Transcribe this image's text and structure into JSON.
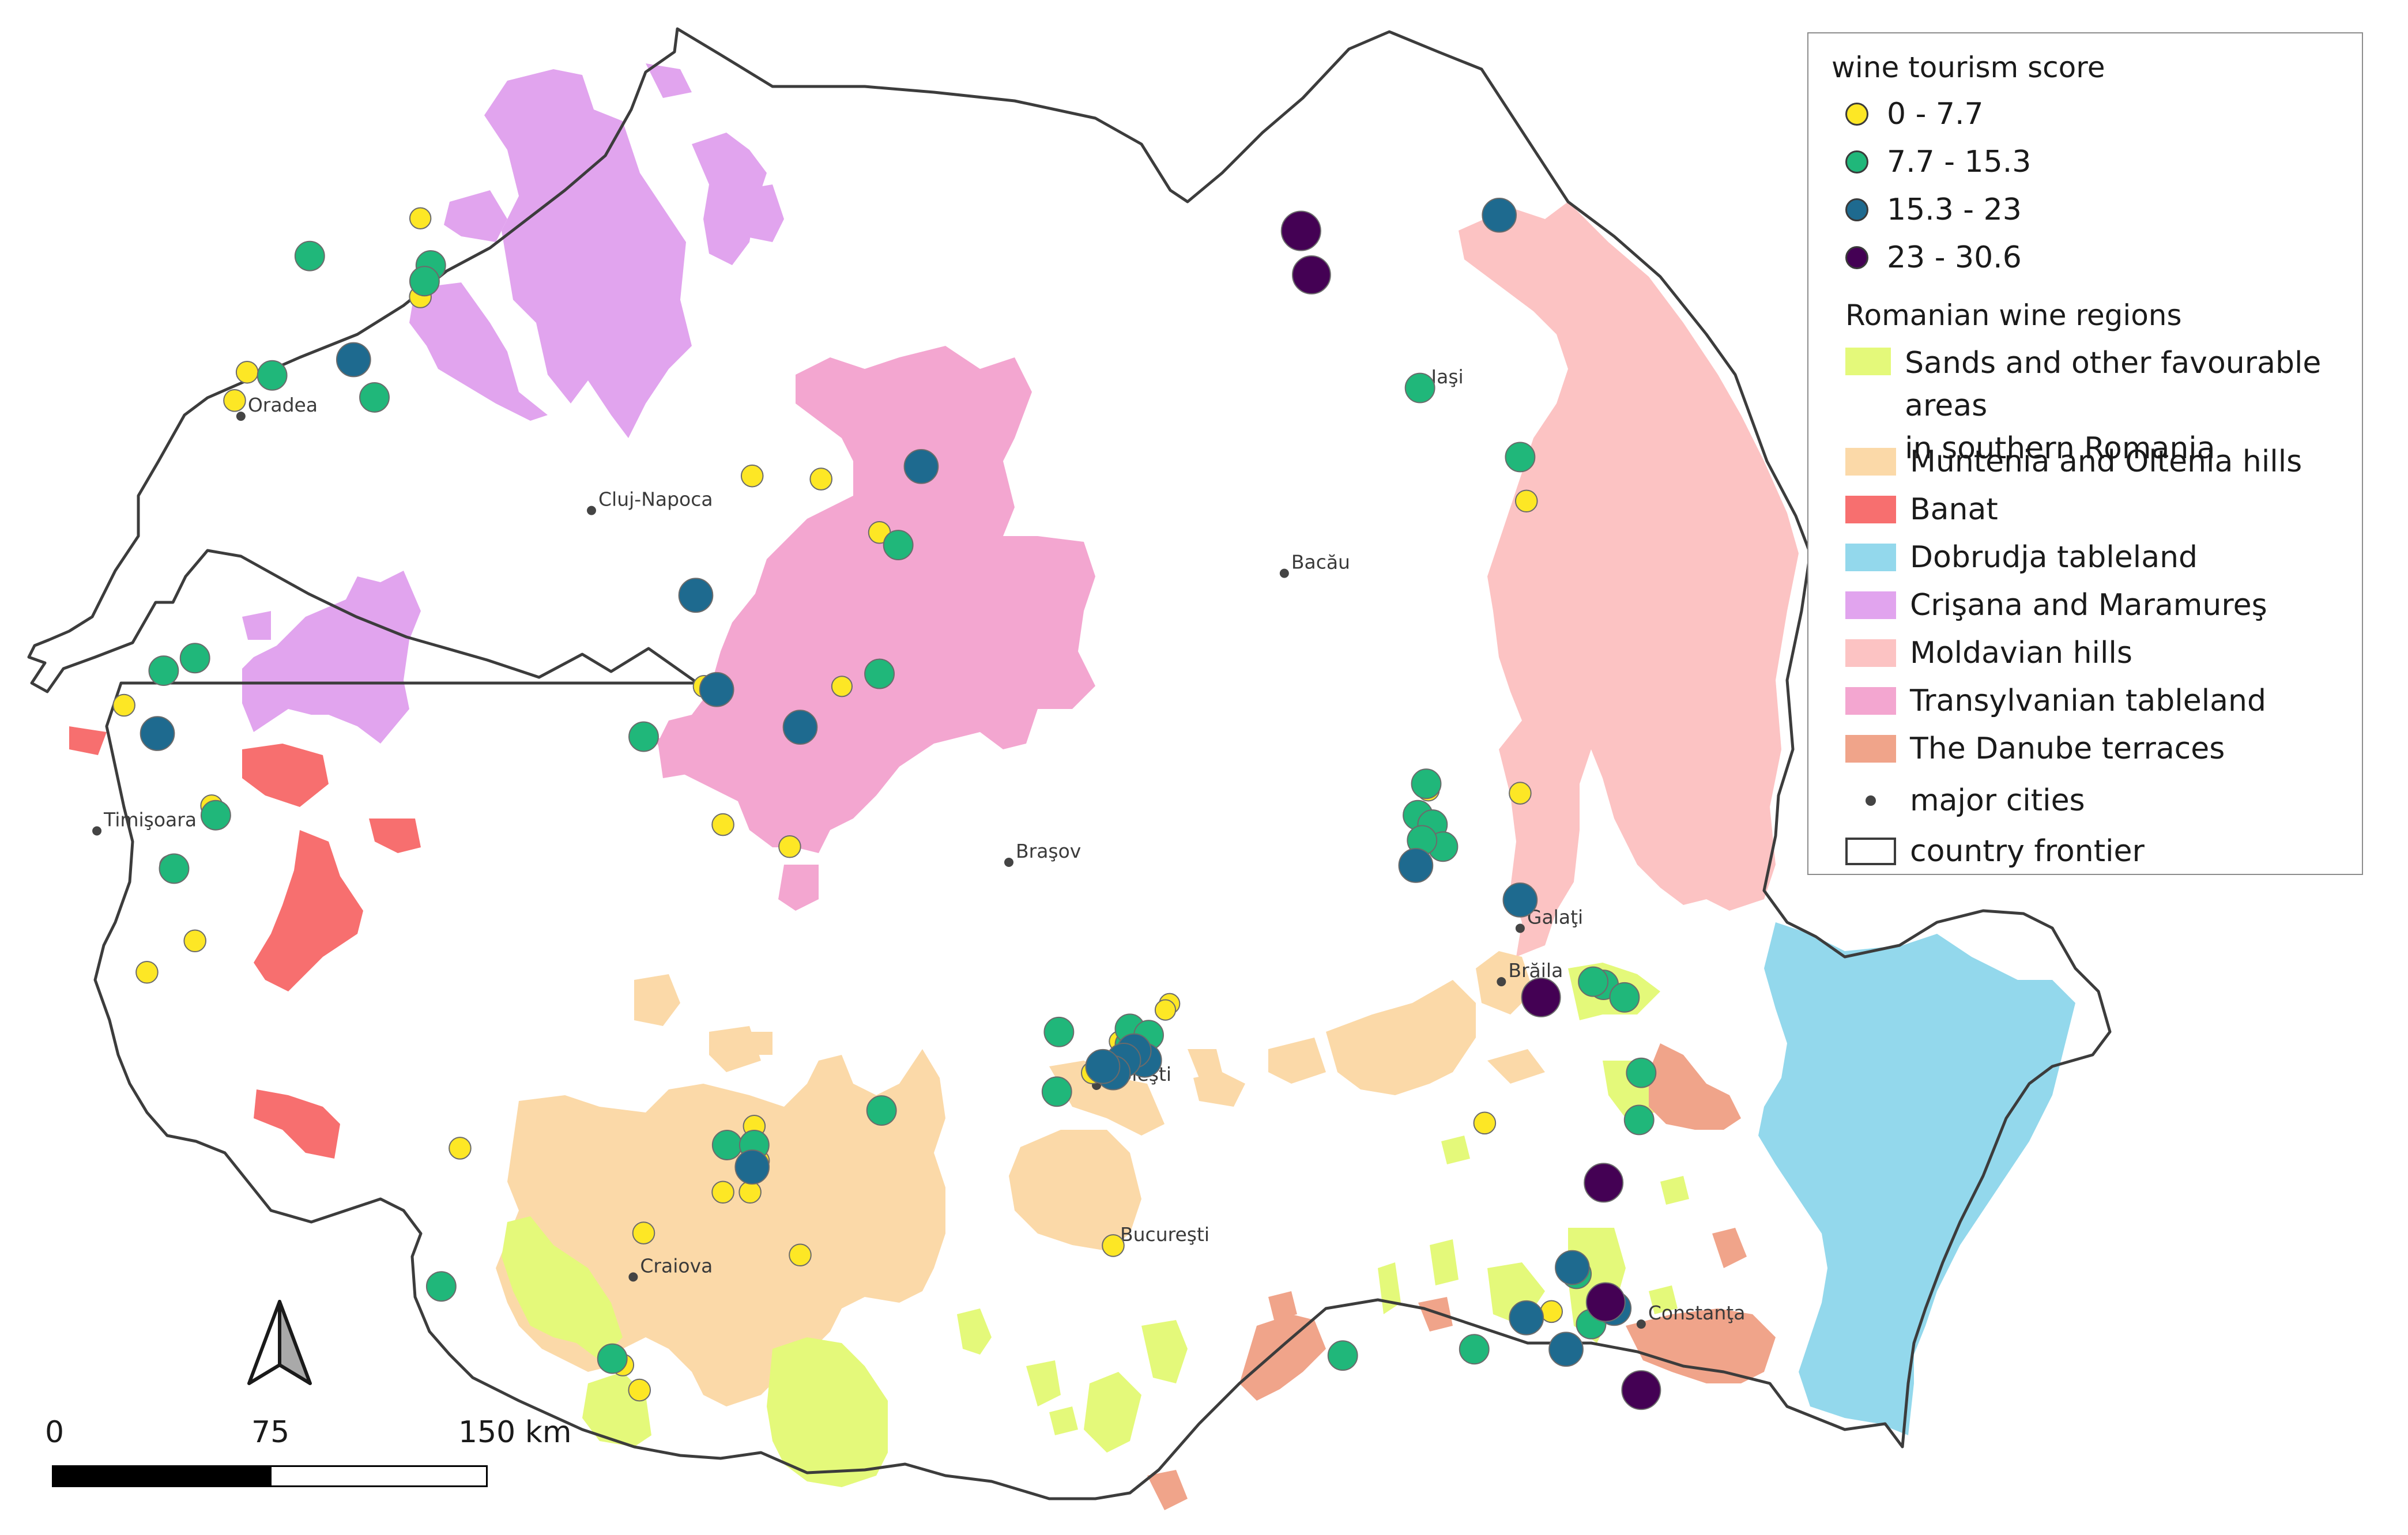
{
  "colors": {
    "sands": "#e4f97a",
    "muntenia": "#fbd9a8",
    "banat": "#f76f6f",
    "dobrudja": "#93d8ec",
    "crisana": "#e1a4ee",
    "moldavian": "#fcc3c3",
    "transylvanian": "#f3a6d0",
    "danube": "#f0a48a",
    "score1": "#fde725",
    "score2": "#20b77a",
    "score3": "#1e6a8f",
    "score4": "#440154",
    "frontier": "#3c3c3c"
  },
  "cities": [
    {
      "name": "Oradea",
      "lon": 21.92,
      "lat": 47.07
    },
    {
      "name": "Cluj-Napoca",
      "lon": 23.6,
      "lat": 46.77
    },
    {
      "name": "Iaşi",
      "lon": 27.59,
      "lat": 47.16
    },
    {
      "name": "Bacău",
      "lon": 26.92,
      "lat": 46.57
    },
    {
      "name": "Timişoara",
      "lon": 21.23,
      "lat": 45.75
    },
    {
      "name": "Braşov",
      "lon": 25.6,
      "lat": 45.65
    },
    {
      "name": "Galaţi",
      "lon": 28.05,
      "lat": 45.44
    },
    {
      "name": "Brăila",
      "lon": 27.96,
      "lat": 45.27
    },
    {
      "name": "Ploieşti",
      "lon": 26.02,
      "lat": 44.94
    },
    {
      "name": "Bucureşti",
      "lon": 26.1,
      "lat": 44.43
    },
    {
      "name": "Craiova",
      "lon": 23.8,
      "lat": 44.33
    },
    {
      "name": "Constanţa",
      "lon": 28.63,
      "lat": 44.18
    }
  ],
  "legend": {
    "score_title": "wine tourism score",
    "score_classes": [
      {
        "label": "0 - 7.7",
        "color": "#fde725"
      },
      {
        "label": "7.7 - 15.3",
        "color": "#20b77a"
      },
      {
        "label": "15.3 - 23",
        "color": "#1e6a8f"
      },
      {
        "label": "23 - 30.6",
        "color": "#440154"
      }
    ],
    "regions_title": "Romanian wine regions",
    "regions": [
      {
        "label": "Sands and other favourable areas",
        "label2": "in southern Romania",
        "color": "#e4f97a"
      },
      {
        "label": "Muntenia and Oltenia hills",
        "color": "#fbd9a8"
      },
      {
        "label": "Banat",
        "color": "#f76f6f"
      },
      {
        "label": "Dobrudja tableland",
        "color": "#93d8ec"
      },
      {
        "label": "Crişana and Maramureş",
        "color": "#e1a4ee"
      },
      {
        "label": "Moldavian hills",
        "color": "#fcc3c3"
      },
      {
        "label": "Transylvanian tableland",
        "color": "#f3a6d0"
      },
      {
        "label": "The Danube terraces",
        "color": "#f0a48a"
      }
    ],
    "cities_label": "major cities",
    "frontier_label": "country frontier"
  },
  "scale_bar": {
    "labels": [
      "0",
      "75",
      "150 km"
    ]
  },
  "north_arrow": {
    "icon": "north-arrow-icon"
  },
  "sites": [
    {
      "lon": 22.78,
      "lat": 47.7,
      "score": 3.5
    },
    {
      "lon": 22.25,
      "lat": 47.58,
      "score": 12
    },
    {
      "lon": 22.83,
      "lat": 47.55,
      "score": 12
    },
    {
      "lon": 22.8,
      "lat": 47.5,
      "score": 12
    },
    {
      "lon": 22.78,
      "lat": 47.45,
      "score": 4
    },
    {
      "lon": 22.46,
      "lat": 47.25,
      "score": 18
    },
    {
      "lon": 22.56,
      "lat": 47.13,
      "score": 12
    },
    {
      "lon": 21.95,
      "lat": 47.21,
      "score": 4
    },
    {
      "lon": 22.07,
      "lat": 47.2,
      "score": 12
    },
    {
      "lon": 21.89,
      "lat": 47.12,
      "score": 4
    },
    {
      "lon": 25.18,
      "lat": 46.91,
      "score": 18
    },
    {
      "lon": 24.37,
      "lat": 46.88,
      "score": 4
    },
    {
      "lon": 24.7,
      "lat": 46.87,
      "score": 4
    },
    {
      "lon": 24.98,
      "lat": 46.7,
      "score": 4
    },
    {
      "lon": 25.07,
      "lat": 46.66,
      "score": 12
    },
    {
      "lon": 24.1,
      "lat": 46.5,
      "score": 18
    },
    {
      "lon": 24.98,
      "lat": 46.25,
      "score": 12
    },
    {
      "lon": 24.2,
      "lat": 46.2,
      "score": 18
    },
    {
      "lon": 24.14,
      "lat": 46.21,
      "score": 4
    },
    {
      "lon": 24.8,
      "lat": 46.21,
      "score": 3
    },
    {
      "lon": 24.6,
      "lat": 46.08,
      "score": 18
    },
    {
      "lon": 23.85,
      "lat": 46.05,
      "score": 12
    },
    {
      "lon": 24.23,
      "lat": 45.77,
      "score": 4
    },
    {
      "lon": 24.55,
      "lat": 45.7,
      "score": 4
    },
    {
      "lon": 21.36,
      "lat": 46.15,
      "score": 4
    },
    {
      "lon": 21.55,
      "lat": 46.26,
      "score": 12
    },
    {
      "lon": 21.7,
      "lat": 46.3,
      "score": 12
    },
    {
      "lon": 21.52,
      "lat": 46.06,
      "score": 18
    },
    {
      "lon": 21.78,
      "lat": 45.83,
      "score": 4
    },
    {
      "lon": 21.8,
      "lat": 45.8,
      "score": 12
    },
    {
      "lon": 21.6,
      "lat": 45.63,
      "score": 12
    },
    {
      "lon": 21.58,
      "lat": 45.64,
      "score": 3
    },
    {
      "lon": 21.7,
      "lat": 45.4,
      "score": 4
    },
    {
      "lon": 21.47,
      "lat": 45.3,
      "score": 4
    },
    {
      "lon": 27.0,
      "lat": 47.66,
      "score": 30
    },
    {
      "lon": 27.05,
      "lat": 47.52,
      "score": 26
    },
    {
      "lon": 27.95,
      "lat": 47.71,
      "score": 18
    },
    {
      "lon": 27.57,
      "lat": 47.16,
      "score": 12
    },
    {
      "lon": 28.05,
      "lat": 46.94,
      "score": 12
    },
    {
      "lon": 28.08,
      "lat": 46.8,
      "score": 4
    },
    {
      "lon": 27.6,
      "lat": 45.9,
      "score": 12
    },
    {
      "lon": 27.61,
      "lat": 45.88,
      "score": 4
    },
    {
      "lon": 27.56,
      "lat": 45.8,
      "score": 12
    },
    {
      "lon": 27.63,
      "lat": 45.77,
      "score": 12
    },
    {
      "lon": 27.68,
      "lat": 45.7,
      "score": 12
    },
    {
      "lon": 27.58,
      "lat": 45.72,
      "score": 12
    },
    {
      "lon": 27.55,
      "lat": 45.64,
      "score": 18
    },
    {
      "lon": 28.05,
      "lat": 45.87,
      "score": 4
    },
    {
      "lon": 28.05,
      "lat": 45.53,
      "score": 18
    },
    {
      "lon": 28.15,
      "lat": 45.22,
      "score": 28
    },
    {
      "lon": 28.45,
      "lat": 45.26,
      "score": 12
    },
    {
      "lon": 28.4,
      "lat": 45.27,
      "score": 12
    },
    {
      "lon": 28.55,
      "lat": 45.22,
      "score": 12
    },
    {
      "lon": 28.63,
      "lat": 44.98,
      "score": 12
    },
    {
      "lon": 28.62,
      "lat": 44.83,
      "score": 12
    },
    {
      "lon": 28.45,
      "lat": 44.63,
      "score": 28
    },
    {
      "lon": 28.3,
      "lat": 44.36,
      "score": 18
    },
    {
      "lon": 28.32,
      "lat": 44.34,
      "score": 12
    },
    {
      "lon": 28.46,
      "lat": 44.25,
      "score": 28
    },
    {
      "lon": 28.5,
      "lat": 44.23,
      "score": 18
    },
    {
      "lon": 28.2,
      "lat": 44.22,
      "score": 4
    },
    {
      "lon": 28.39,
      "lat": 44.18,
      "score": 12
    },
    {
      "lon": 28.08,
      "lat": 44.2,
      "score": 18
    },
    {
      "lon": 28.27,
      "lat": 44.1,
      "score": 18
    },
    {
      "lon": 28.63,
      "lat": 43.97,
      "score": 28
    },
    {
      "lon": 27.2,
      "lat": 44.08,
      "score": 12
    },
    {
      "lon": 27.83,
      "lat": 44.1,
      "score": 12
    },
    {
      "lon": 27.88,
      "lat": 44.82,
      "score": 4
    },
    {
      "lon": 25.84,
      "lat": 45.11,
      "score": 12
    },
    {
      "lon": 26.18,
      "lat": 45.07,
      "score": 12
    },
    {
      "lon": 26.18,
      "lat": 45.12,
      "score": 12
    },
    {
      "lon": 26.27,
      "lat": 45.1,
      "score": 12
    },
    {
      "lon": 26.25,
      "lat": 45.02,
      "score": 18
    },
    {
      "lon": 26.2,
      "lat": 45.05,
      "score": 18
    },
    {
      "lon": 26.15,
      "lat": 45.02,
      "score": 18
    },
    {
      "lon": 26.1,
      "lat": 44.98,
      "score": 18
    },
    {
      "lon": 26.05,
      "lat": 45.0,
      "score": 18
    },
    {
      "lon": 26.0,
      "lat": 44.98,
      "score": 4
    },
    {
      "lon": 26.37,
      "lat": 45.2,
      "score": 3
    },
    {
      "lon": 26.35,
      "lat": 45.18,
      "score": 3
    },
    {
      "lon": 26.13,
      "lat": 45.08,
      "score": 3
    },
    {
      "lon": 25.83,
      "lat": 44.92,
      "score": 12
    },
    {
      "lon": 24.99,
      "lat": 44.86,
      "score": 12
    },
    {
      "lon": 24.38,
      "lat": 44.81,
      "score": 4
    },
    {
      "lon": 24.25,
      "lat": 44.75,
      "score": 12
    },
    {
      "lon": 24.38,
      "lat": 44.75,
      "score": 12
    },
    {
      "lon": 24.37,
      "lat": 44.68,
      "score": 18
    },
    {
      "lon": 24.4,
      "lat": 44.7,
      "score": 4
    },
    {
      "lon": 24.23,
      "lat": 44.6,
      "score": 4
    },
    {
      "lon": 24.36,
      "lat": 44.6,
      "score": 4
    },
    {
      "lon": 24.6,
      "lat": 44.4,
      "score": 4
    },
    {
      "lon": 23.85,
      "lat": 44.47,
      "score": 4
    },
    {
      "lon": 22.97,
      "lat": 44.74,
      "score": 4
    },
    {
      "lon": 22.88,
      "lat": 44.3,
      "score": 12
    },
    {
      "lon": 23.7,
      "lat": 44.07,
      "score": 12
    },
    {
      "lon": 23.75,
      "lat": 44.05,
      "score": 4
    },
    {
      "lon": 23.83,
      "lat": 43.97,
      "score": 4
    },
    {
      "lon": 26.1,
      "lat": 44.43,
      "score": 4
    }
  ]
}
